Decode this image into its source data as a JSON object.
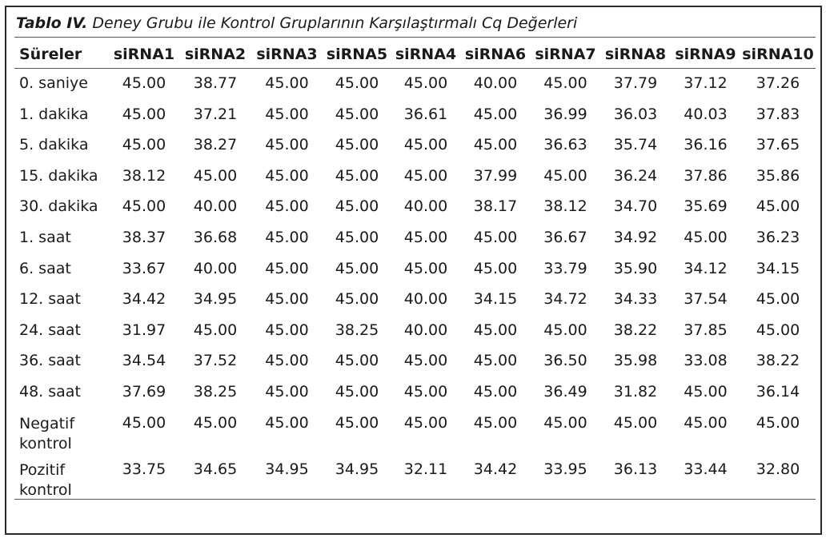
{
  "caption": {
    "lead": "Tablo IV.",
    "text": " Deney Grubu ile Kontrol Gruplarının Karşılaştırmalı Cq Değerleri"
  },
  "columns": [
    "Süreler",
    "siRNA1",
    "siRNA2",
    "siRNA3",
    "siRNA5",
    "siRNA4",
    "siRNA6",
    "siRNA7",
    "siRNA8",
    "siRNA9",
    "siRNA10"
  ],
  "rows": [
    {
      "label": "0. saniye",
      "values": [
        "45.00",
        "38.77",
        "45.00",
        "45.00",
        "45.00",
        "40.00",
        "45.00",
        "37.79",
        "37.12",
        "37.26"
      ]
    },
    {
      "label": "1. dakika",
      "values": [
        "45.00",
        "37.21",
        "45.00",
        "45.00",
        "36.61",
        "45.00",
        "36.99",
        "36.03",
        "40.03",
        "37.83"
      ]
    },
    {
      "label": "5. dakika",
      "values": [
        "45.00",
        "38.27",
        "45.00",
        "45.00",
        "45.00",
        "45.00",
        "36.63",
        "35.74",
        "36.16",
        "37.65"
      ]
    },
    {
      "label": "15. dakika",
      "values": [
        "38.12",
        "45.00",
        "45.00",
        "45.00",
        "45.00",
        "37.99",
        "45.00",
        "36.24",
        "37.86",
        "35.86"
      ]
    },
    {
      "label": "30. dakika",
      "values": [
        "45.00",
        "40.00",
        "45.00",
        "45.00",
        "40.00",
        "38.17",
        "38.12",
        "34.70",
        "35.69",
        "45.00"
      ]
    },
    {
      "label": "1. saat",
      "values": [
        "38.37",
        "36.68",
        "45.00",
        "45.00",
        "45.00",
        "45.00",
        "36.67",
        "34.92",
        "45.00",
        "36.23"
      ]
    },
    {
      "label": "6. saat",
      "values": [
        "33.67",
        "40.00",
        "45.00",
        "45.00",
        "45.00",
        "45.00",
        "33.79",
        "35.90",
        "34.12",
        "34.15"
      ]
    },
    {
      "label": "12. saat",
      "values": [
        "34.42",
        "34.95",
        "45.00",
        "45.00",
        "40.00",
        "34.15",
        "34.72",
        "34.33",
        "37.54",
        "45.00"
      ]
    },
    {
      "label": "24. saat",
      "values": [
        "31.97",
        "45.00",
        "45.00",
        "38.25",
        "40.00",
        "45.00",
        "45.00",
        "38.22",
        "37.85",
        "45.00"
      ]
    },
    {
      "label": "36. saat",
      "values": [
        "34.54",
        "37.52",
        "45.00",
        "45.00",
        "45.00",
        "45.00",
        "36.50",
        "35.98",
        "33.08",
        "38.22"
      ]
    },
    {
      "label": "48. saat",
      "values": [
        "37.69",
        "38.25",
        "45.00",
        "45.00",
        "45.00",
        "45.00",
        "36.49",
        "31.82",
        "45.00",
        "36.14"
      ]
    },
    {
      "label": "Negatif kontrol",
      "values": [
        "45.00",
        "45.00",
        "45.00",
        "45.00",
        "45.00",
        "45.00",
        "45.00",
        "45.00",
        "45.00",
        "45.00"
      ]
    },
    {
      "label": "Pozitif kontrol",
      "values": [
        "33.75",
        "34.65",
        "34.95",
        "34.95",
        "32.11",
        "34.42",
        "33.95",
        "36.13",
        "33.44",
        "32.80"
      ]
    }
  ]
}
